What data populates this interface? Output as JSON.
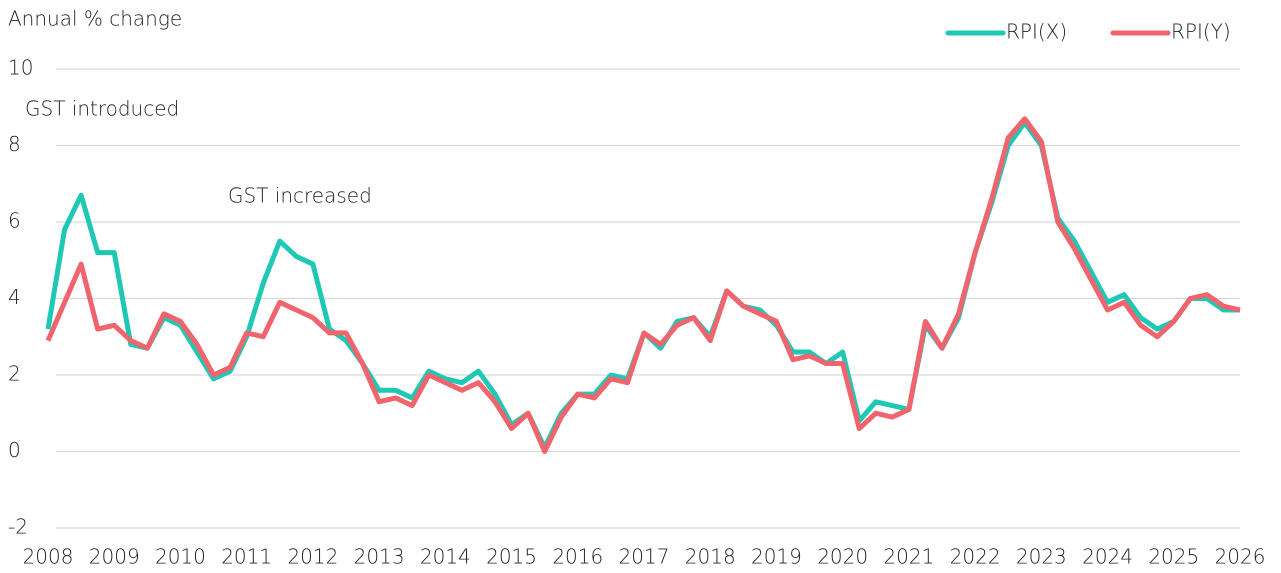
{
  "chart_data": {
    "type": "line",
    "y_label": "Annual % change",
    "annotations": [
      {
        "text": "GST introduced"
      },
      {
        "text": "GST increased"
      }
    ],
    "x": [
      2008,
      2008.25,
      2008.5,
      2008.75,
      2009,
      2009.25,
      2009.5,
      2009.75,
      2010,
      2010.25,
      2010.5,
      2010.75,
      2011,
      2011.25,
      2011.5,
      2011.75,
      2012,
      2012.25,
      2012.5,
      2012.75,
      2013,
      2013.25,
      2013.5,
      2013.75,
      2014,
      2014.25,
      2014.5,
      2014.75,
      2015,
      2015.25,
      2015.5,
      2015.75,
      2016,
      2016.25,
      2016.5,
      2016.75,
      2017,
      2017.25,
      2017.5,
      2017.75,
      2018,
      2018.25,
      2018.5,
      2018.75,
      2019,
      2019.25,
      2019.5,
      2019.75,
      2020,
      2020.25,
      2020.5,
      2020.75,
      2021,
      2021.25,
      2021.5,
      2021.75,
      2022,
      2022.25,
      2022.5,
      2022.75,
      2023,
      2023.25,
      2023.5,
      2023.75,
      2024,
      2024.25,
      2024.5,
      2024.75,
      2025,
      2025.25,
      2025.5,
      2025.75,
      2026
    ],
    "series": [
      {
        "name": "RPI(X)",
        "color": "#1ec8b4",
        "values": [
          3.2,
          5.8,
          6.7,
          5.2,
          5.2,
          2.8,
          2.7,
          3.5,
          3.3,
          2.6,
          1.9,
          2.1,
          3.0,
          4.4,
          5.5,
          5.1,
          4.9,
          3.2,
          2.9,
          2.3,
          1.6,
          1.6,
          1.4,
          2.1,
          1.9,
          1.8,
          2.1,
          1.5,
          0.7,
          1.0,
          0.1,
          1.0,
          1.5,
          1.5,
          2.0,
          1.9,
          3.1,
          2.7,
          3.4,
          3.5,
          3.0,
          4.2,
          3.8,
          3.7,
          3.3,
          2.6,
          2.6,
          2.3,
          2.6,
          0.8,
          1.3,
          1.2,
          1.1,
          3.3,
          2.7,
          3.5,
          5.2,
          6.5,
          8.0,
          8.6,
          8.0,
          6.1,
          5.5,
          4.7,
          3.9,
          4.1,
          3.5,
          3.2,
          3.4,
          4.0,
          4.0,
          3.7,
          3.7
        ]
      },
      {
        "name": "RPI(Y)",
        "color": "#f0646e",
        "values": [
          2.9,
          3.9,
          4.9,
          3.2,
          3.3,
          2.9,
          2.7,
          3.6,
          3.4,
          2.8,
          2.0,
          2.2,
          3.1,
          3.0,
          3.9,
          3.7,
          3.5,
          3.1,
          3.1,
          2.3,
          1.3,
          1.4,
          1.2,
          2.0,
          1.8,
          1.6,
          1.8,
          1.3,
          0.6,
          1.0,
          0.0,
          0.9,
          1.5,
          1.4,
          1.9,
          1.8,
          3.1,
          2.8,
          3.3,
          3.5,
          2.9,
          4.2,
          3.8,
          3.6,
          3.4,
          2.4,
          2.5,
          2.3,
          2.3,
          0.6,
          1.0,
          0.9,
          1.1,
          3.4,
          2.7,
          3.6,
          5.2,
          6.6,
          8.2,
          8.7,
          8.1,
          6.0,
          5.3,
          4.5,
          3.7,
          3.9,
          3.3,
          3.0,
          3.4,
          4.0,
          4.1,
          3.8,
          3.7
        ]
      }
    ],
    "xlim": [
      2008,
      2026
    ],
    "xticks": [
      2008,
      2009,
      2010,
      2011,
      2012,
      2013,
      2014,
      2015,
      2016,
      2017,
      2018,
      2019,
      2020,
      2021,
      2022,
      2023,
      2024,
      2025,
      2026
    ],
    "ylim": [
      -2,
      10
    ],
    "yticks": [
      -2,
      0,
      2,
      4,
      6,
      8,
      10
    ],
    "grid": true,
    "legend": "top-right"
  }
}
